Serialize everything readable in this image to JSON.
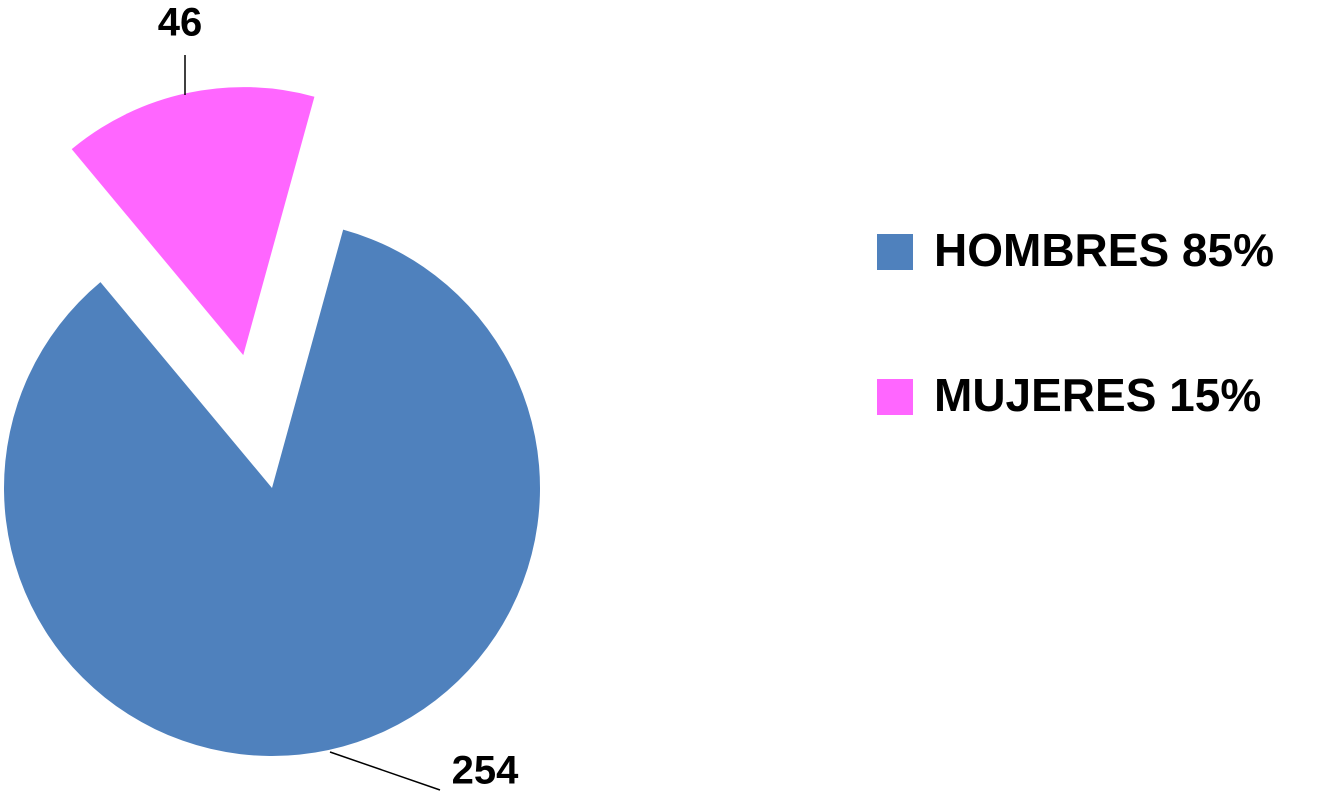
{
  "chart_data": {
    "type": "pie",
    "categories": [
      "HOMBRES 85%",
      "MUJERES 15%"
    ],
    "values": [
      254,
      46
    ],
    "colors": [
      "#4f81bd",
      "#ff66ff"
    ]
  }
}
